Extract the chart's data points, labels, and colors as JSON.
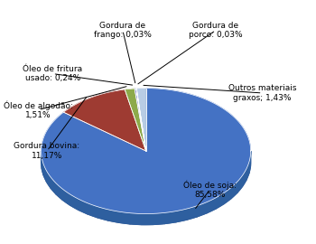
{
  "labels": [
    "Óleo de soja:\n85,58%",
    "Gordura bovina:\n11,17%",
    "Óleo de algodão:\n1,51%",
    "Óleo de fritura\nusado: 0,24%",
    "Gordura de\nfrango: 0,03%",
    "Gordura de\nporco: 0,03%",
    "Outros materiais\ngraxos; 1,43%"
  ],
  "values": [
    85.58,
    11.17,
    1.51,
    0.24,
    0.03,
    0.03,
    1.43
  ],
  "colors": [
    "#4472C4",
    "#9E3B32",
    "#8DAA4A",
    "#7B7BB5",
    "#4BACC6",
    "#4BACC6",
    "#B8CCE4"
  ],
  "startangle": 90,
  "background_color": "#ffffff"
}
